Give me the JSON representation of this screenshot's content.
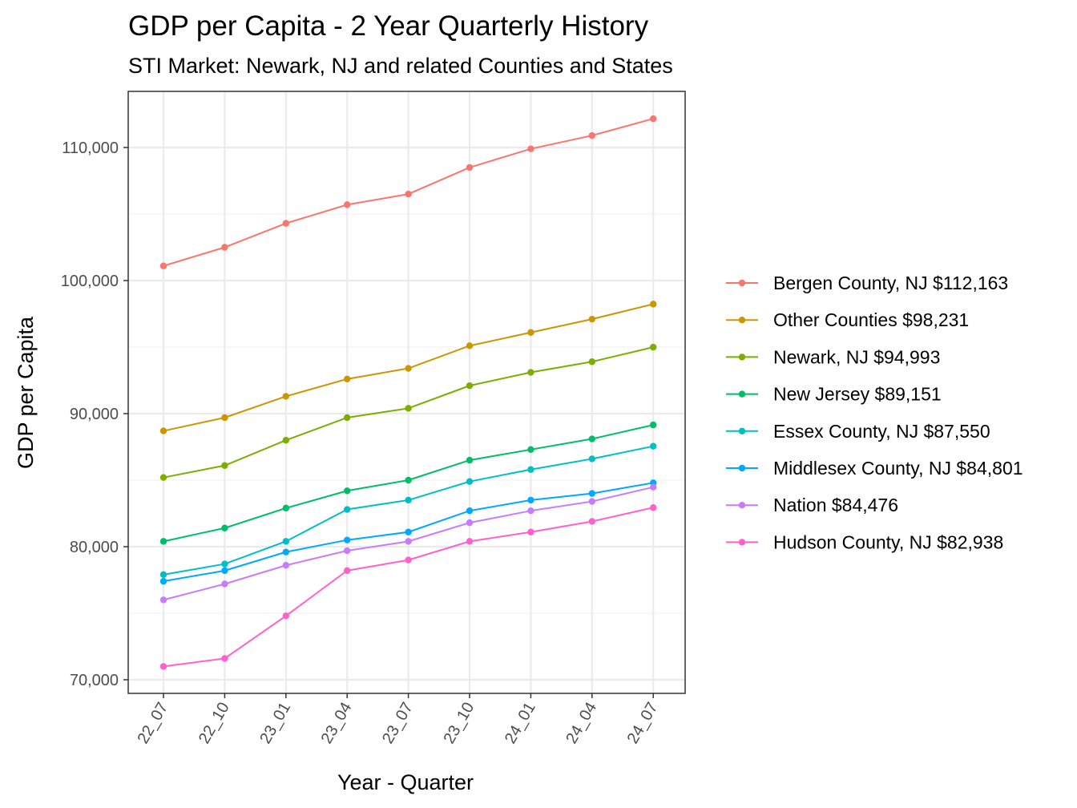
{
  "chart_data": {
    "type": "line",
    "title": "GDP per Capita - 2 Year Quarterly History",
    "subtitle": "STI Market: Newark, NJ and related Counties and States",
    "xlabel": "Year - Quarter",
    "ylabel": "GDP per Capita",
    "categories": [
      "22_07",
      "22_10",
      "23_01",
      "23_04",
      "23_07",
      "23_10",
      "24_01",
      "24_04",
      "24_07"
    ],
    "ylim": [
      69000,
      114000
    ],
    "yticks": [
      70000,
      80000,
      90000,
      100000,
      110000
    ],
    "ytick_labels": [
      "70,000",
      "80,000",
      "90,000",
      "100,000",
      "110,000"
    ],
    "grid": true,
    "legend_position": "right",
    "series": [
      {
        "name": "Bergen County, NJ $112,163",
        "color": "#F8766D",
        "values": [
          101100,
          102500,
          104300,
          105700,
          106500,
          108500,
          109900,
          110900,
          112163
        ]
      },
      {
        "name": "Other Counties $98,231",
        "color": "#CD9600",
        "values": [
          88700,
          89700,
          91300,
          92600,
          93400,
          95100,
          96100,
          97100,
          98231
        ]
      },
      {
        "name": "Newark, NJ $94,993",
        "color": "#7CAE00",
        "values": [
          85200,
          86100,
          88000,
          89700,
          90400,
          92100,
          93100,
          93900,
          94993
        ]
      },
      {
        "name": "New Jersey $89,151",
        "color": "#00BE67",
        "values": [
          80400,
          81400,
          82900,
          84200,
          85000,
          86500,
          87300,
          88100,
          89151
        ]
      },
      {
        "name": "Essex County, NJ $87,550",
        "color": "#00BFC4",
        "values": [
          77900,
          78700,
          80400,
          82800,
          83500,
          84900,
          85800,
          86600,
          87550
        ]
      },
      {
        "name": "Middlesex County, NJ $84,801",
        "color": "#00A9FF",
        "values": [
          77400,
          78200,
          79600,
          80500,
          81100,
          82700,
          83500,
          84000,
          84801
        ]
      },
      {
        "name": "Nation $84,476",
        "color": "#C77CFF",
        "values": [
          76000,
          77200,
          78600,
          79700,
          80400,
          81800,
          82700,
          83400,
          84476
        ]
      },
      {
        "name": "Hudson County, NJ $82,938",
        "color": "#FF61CC",
        "values": [
          71000,
          71600,
          74800,
          78200,
          79000,
          80400,
          81100,
          81900,
          82938
        ]
      }
    ]
  }
}
